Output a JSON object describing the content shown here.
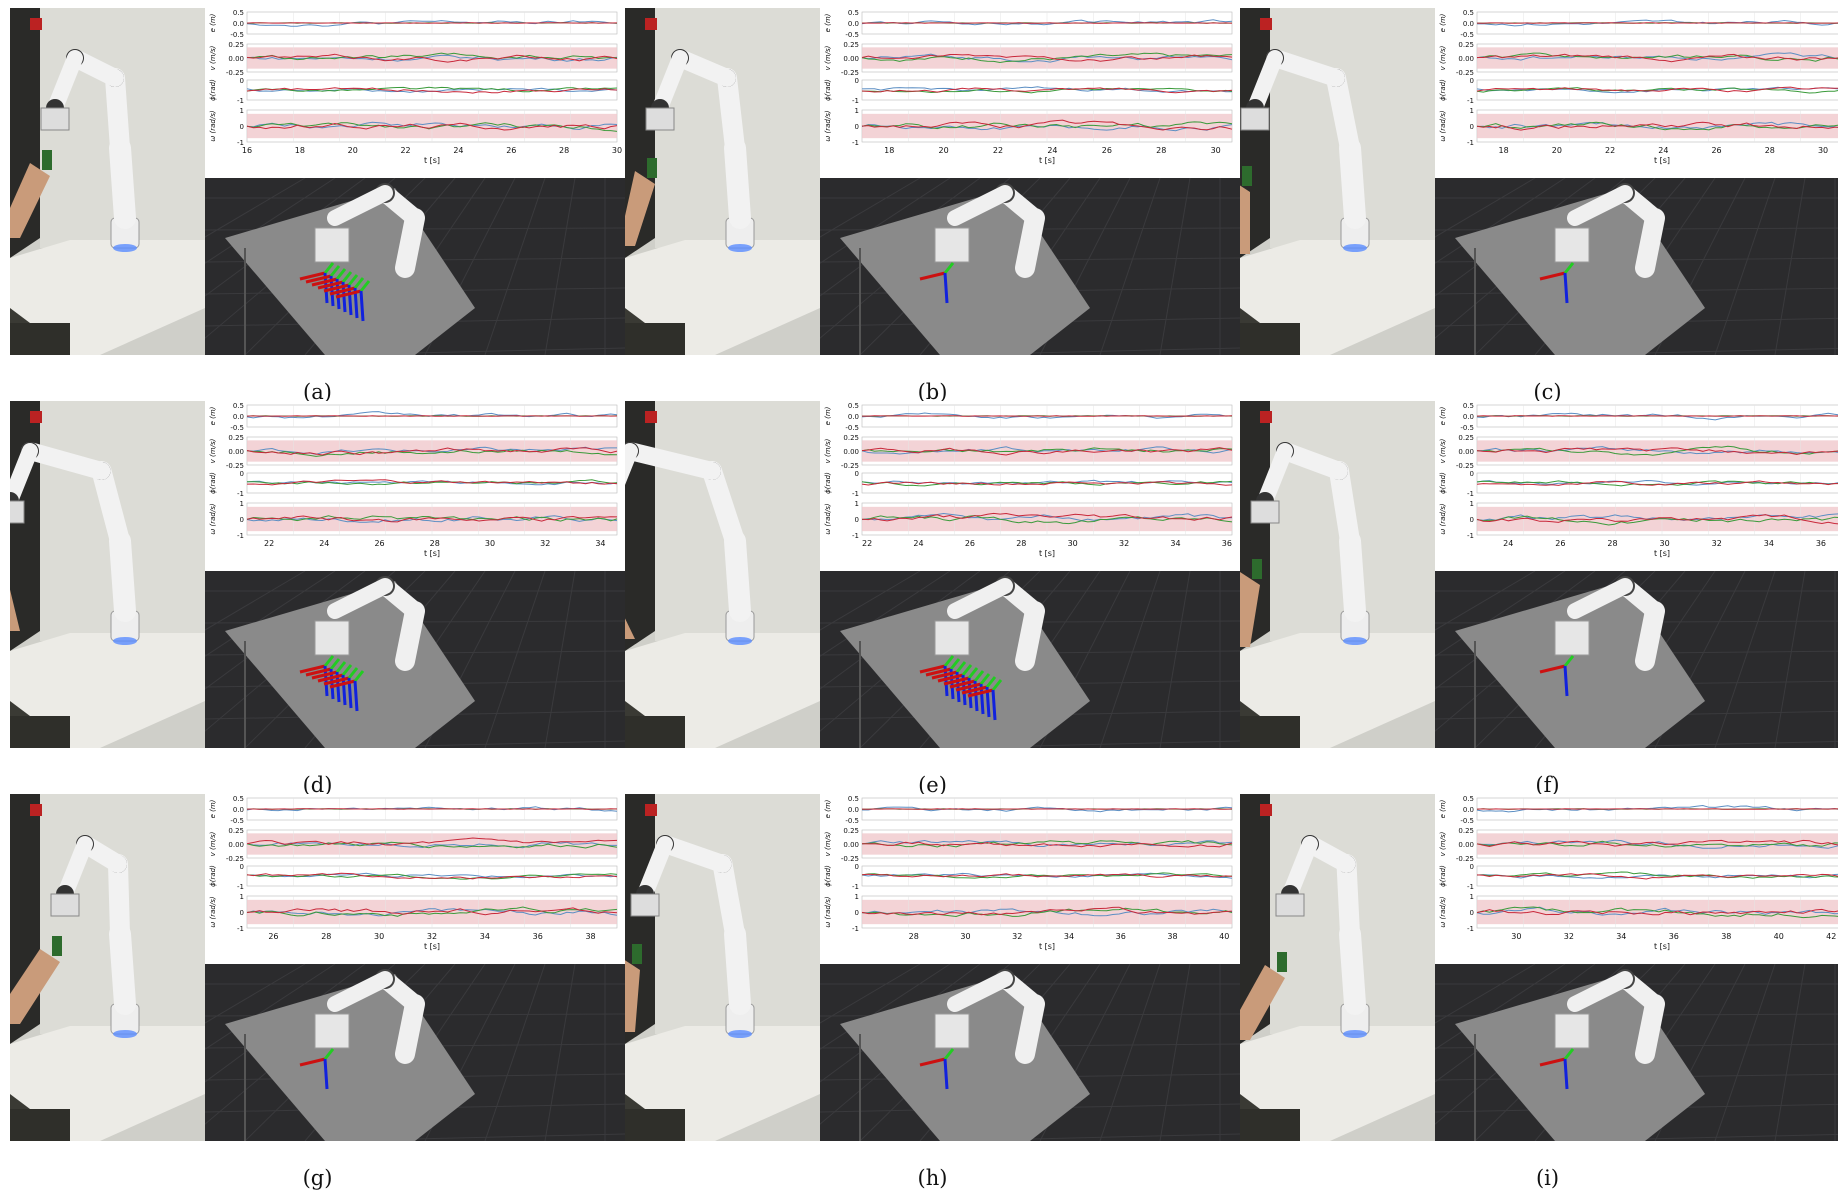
{
  "panels": [
    {
      "label": "(a)",
      "ticks": [
        "16",
        "18",
        "20",
        "22",
        "24",
        "26",
        "28",
        "30"
      ],
      "t0": 16,
      "t1": 30
    },
    {
      "label": "(b)",
      "ticks": [
        "18",
        "20",
        "22",
        "24",
        "26",
        "28",
        "30"
      ],
      "t0": 17,
      "t1": 30.6
    },
    {
      "label": "(c)",
      "ticks": [
        "18",
        "20",
        "22",
        "24",
        "26",
        "28",
        "30"
      ],
      "t0": 17,
      "t1": 30.9
    },
    {
      "label": "(d)",
      "ticks": [
        "22",
        "24",
        "26",
        "28",
        "30",
        "32",
        "34"
      ],
      "t0": 21.2,
      "t1": 34.6
    },
    {
      "label": "(e)",
      "ticks": [
        "22",
        "24",
        "26",
        "28",
        "30",
        "32",
        "34",
        "36"
      ],
      "t0": 21.8,
      "t1": 36.2
    },
    {
      "label": "(f)",
      "ticks": [
        "24",
        "26",
        "28",
        "30",
        "32",
        "34",
        "36"
      ],
      "t0": 22.8,
      "t1": 37.0
    },
    {
      "label": "(g)",
      "ticks": [
        "26",
        "28",
        "30",
        "32",
        "34",
        "36",
        "38"
      ],
      "t0": 25,
      "t1": 39
    },
    {
      "label": "(h)",
      "ticks": [
        "28",
        "30",
        "32",
        "34",
        "36",
        "38",
        "40"
      ],
      "t0": 26,
      "t1": 40.3
    },
    {
      "label": "(i)",
      "ticks": [
        "30",
        "32",
        "34",
        "36",
        "38",
        "40",
        "42"
      ],
      "t0": 28.5,
      "t1": 42.6
    }
  ],
  "axes": {
    "e_label": "e (m)",
    "v_label": "v (m/s)",
    "phi_label": "ϕ(rad)",
    "w_label": "ω (rad/s)",
    "x_label": "t [s]",
    "e_ticks": [
      "0.5",
      "0.0",
      "-0.5"
    ],
    "v_ticks": [
      "0.25",
      "0.00",
      "-0.25"
    ],
    "phi_ticks": [
      "0",
      "-1"
    ],
    "w_ticks": [
      "1",
      "0",
      "-1"
    ]
  },
  "colors": {
    "series_blue": "#5b8ec3",
    "series_green": "#3a9a3a",
    "series_red": "#c8283a",
    "limit_band": "#f0c8cc",
    "sim_bg": "#2b2b2d",
    "table": "#8a8a8a",
    "frame_x": "#cc1111",
    "frame_y": "#22cc22",
    "frame_z": "#1122dd"
  }
}
